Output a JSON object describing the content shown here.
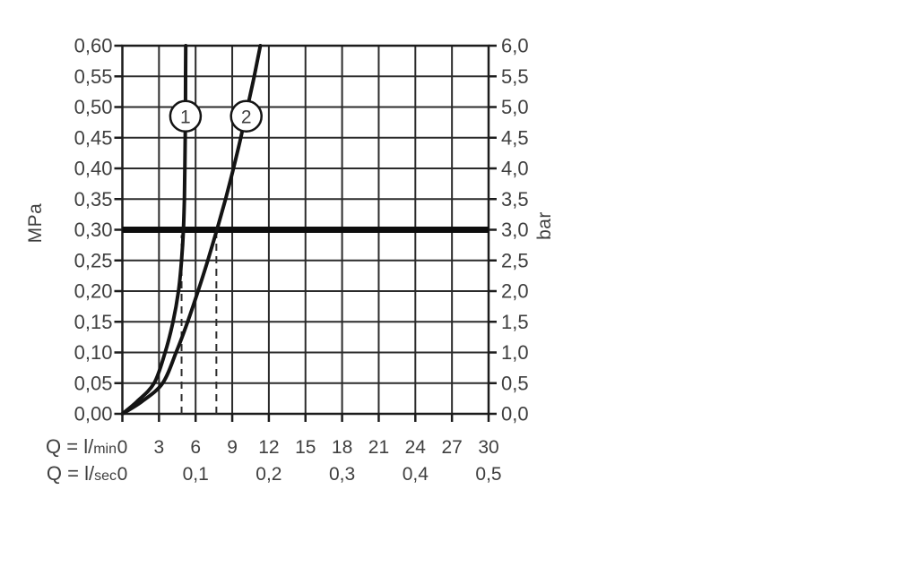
{
  "palette": {
    "background": "#ffffff",
    "grid": "#2b2b2b",
    "border": "#1c1c1c",
    "curve": "#141414",
    "reference_line": "#0d0d0d",
    "dashed_guide": "#2e2e2e",
    "text": "#3f3f3f",
    "marker_fill": "#ffffff"
  },
  "chart_data": {
    "type": "line",
    "title": "",
    "grid": "on",
    "x_axis": {
      "min": 0,
      "max": 30,
      "tick_step": 3,
      "row1_label": "Q = l/min",
      "row1_ticks": [
        "0",
        "3",
        "6",
        "9",
        "12",
        "15",
        "18",
        "21",
        "24",
        "27",
        "30"
      ],
      "row2_label": "Q = l/sec",
      "row2_ticks": [
        {
          "label": "0",
          "lmin": 0
        },
        {
          "label": "0,1",
          "lmin": 6
        },
        {
          "label": "0,2",
          "lmin": 12
        },
        {
          "label": "0,3",
          "lmin": 18
        },
        {
          "label": "0,4",
          "lmin": 24
        },
        {
          "label": "0,5",
          "lmin": 30
        }
      ]
    },
    "y_axis_left": {
      "title": "MPa",
      "min": 0,
      "max": 0.6,
      "step": 0.05,
      "tick_labels_top_down": [
        "0,60",
        "0,55",
        "0,50",
        "0,45",
        "0,40",
        "0,35",
        "0,30",
        "0,25",
        "0,20",
        "0,15",
        "0,10",
        "0,05",
        "0,00"
      ]
    },
    "y_axis_right": {
      "title": "bar",
      "min": 0,
      "max": 6.0,
      "step": 0.5,
      "tick_labels_top_down": [
        "6,0",
        "5,5",
        "5,0",
        "4,5",
        "4,0",
        "3,5",
        "3,0",
        "2,5",
        "2,0",
        "1,5",
        "1,0",
        "0,5",
        "0,0"
      ]
    },
    "reference_line": {
      "mpa": 0.3,
      "bar": 3.0
    },
    "dashed_guides_lmin": [
      4.85,
      7.7
    ],
    "series": [
      {
        "name": "1",
        "marker": {
          "lmin": 5.17,
          "mpa": 0.485
        },
        "points_lmin_mpa": [
          [
            0,
            0
          ],
          [
            1.2,
            0.02
          ],
          [
            2.6,
            0.05
          ],
          [
            3.5,
            0.1
          ],
          [
            4.15,
            0.15
          ],
          [
            4.6,
            0.2
          ],
          [
            4.85,
            0.25
          ],
          [
            5.0,
            0.3
          ],
          [
            5.08,
            0.35
          ],
          [
            5.12,
            0.4
          ],
          [
            5.15,
            0.45
          ],
          [
            5.17,
            0.5
          ],
          [
            5.18,
            0.55
          ],
          [
            5.19,
            0.6
          ]
        ]
      },
      {
        "name": "2",
        "marker": {
          "lmin": 10.15,
          "mpa": 0.485
        },
        "points_lmin_mpa": [
          [
            0,
            0
          ],
          [
            1.6,
            0.02
          ],
          [
            3.3,
            0.05
          ],
          [
            4.4,
            0.1
          ],
          [
            5.35,
            0.15
          ],
          [
            6.2,
            0.2
          ],
          [
            7.0,
            0.25
          ],
          [
            7.75,
            0.3
          ],
          [
            8.45,
            0.35
          ],
          [
            9.1,
            0.4
          ],
          [
            9.7,
            0.45
          ],
          [
            10.25,
            0.5
          ],
          [
            10.8,
            0.55
          ],
          [
            11.3,
            0.6
          ]
        ]
      }
    ]
  }
}
